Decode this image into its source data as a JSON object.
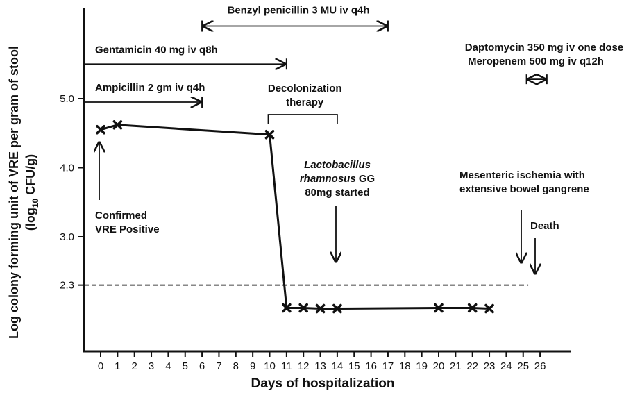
{
  "chart_data": {
    "type": "line",
    "xlabel": "Days of hospitalization",
    "ylabel_line1": "Log colony forming unit of VRE per gram of stool",
    "ylabel_line2": "(log",
    "ylabel_sub": "10",
    "ylabel_line2_end": " CFU/g)",
    "x_ticks": [
      "0",
      "1",
      "2",
      "3",
      "4",
      "5",
      "6",
      "7",
      "8",
      "9",
      "10",
      "11",
      "12",
      "13",
      "14",
      "15",
      "16",
      "17",
      "18",
      "19",
      "20",
      "21",
      "22",
      "23",
      "24",
      "25",
      "26"
    ],
    "y_ticks": [
      {
        "label": "5.0",
        "value": 5.0
      },
      {
        "label": "4.0",
        "value": 4.0
      },
      {
        "label": "3.0",
        "value": 3.0
      },
      {
        "label": "2.3",
        "value": 2.3
      }
    ],
    "xlim": [
      -1,
      28
    ],
    "ylim": [
      1.0,
      6.3
    ],
    "threshold": 2.3,
    "series": [
      {
        "points": [
          {
            "x": 0,
            "y": 4.55
          },
          {
            "x": 1,
            "y": 4.62
          },
          {
            "x": 10,
            "y": 4.48
          },
          {
            "x": 11,
            "y": 1.97
          },
          {
            "x": 12,
            "y": 1.97
          },
          {
            "x": 13,
            "y": 1.96
          },
          {
            "x": 14,
            "y": 1.96
          },
          {
            "x": 20,
            "y": 1.97
          },
          {
            "x": 22,
            "y": 1.97
          },
          {
            "x": 23,
            "y": 1.96
          }
        ]
      }
    ],
    "treatments": [
      {
        "label": "Benzyl penicillin 3 MU iv q4h",
        "start": 6,
        "end": 17,
        "y": 6.05,
        "style": "double"
      },
      {
        "label": "Gentamicin 40 mg iv q8h",
        "start": -1,
        "end": 11,
        "y": 5.5,
        "style": "single"
      },
      {
        "label": "Ampicillin 2 gm iv q4h",
        "start": -1,
        "end": 6,
        "y": 4.95,
        "style": "single"
      },
      {
        "label_line1": "Daptomycin 350 mg iv one dose",
        "label_line2": "Meropenem 500 mg iv q12h",
        "start": 25.2,
        "end": 26.4,
        "y": 5.28,
        "style": "double"
      }
    ],
    "decolonization": {
      "label_line1": "Decolonization",
      "label_line2": "therapy",
      "start": 10,
      "end": 14
    },
    "annotations": {
      "vre_line1": "Confirmed",
      "vre_line2": "VRE Positive",
      "lacto_italic1": "Lactobacillus",
      "lacto_italic2": "rhamnosus",
      "lacto_gg": " GG",
      "lacto_line3": "80mg started",
      "isch_line1": "Mesenteric ischemia with",
      "isch_line2": "extensive bowel gangrene",
      "death": "Death"
    }
  }
}
